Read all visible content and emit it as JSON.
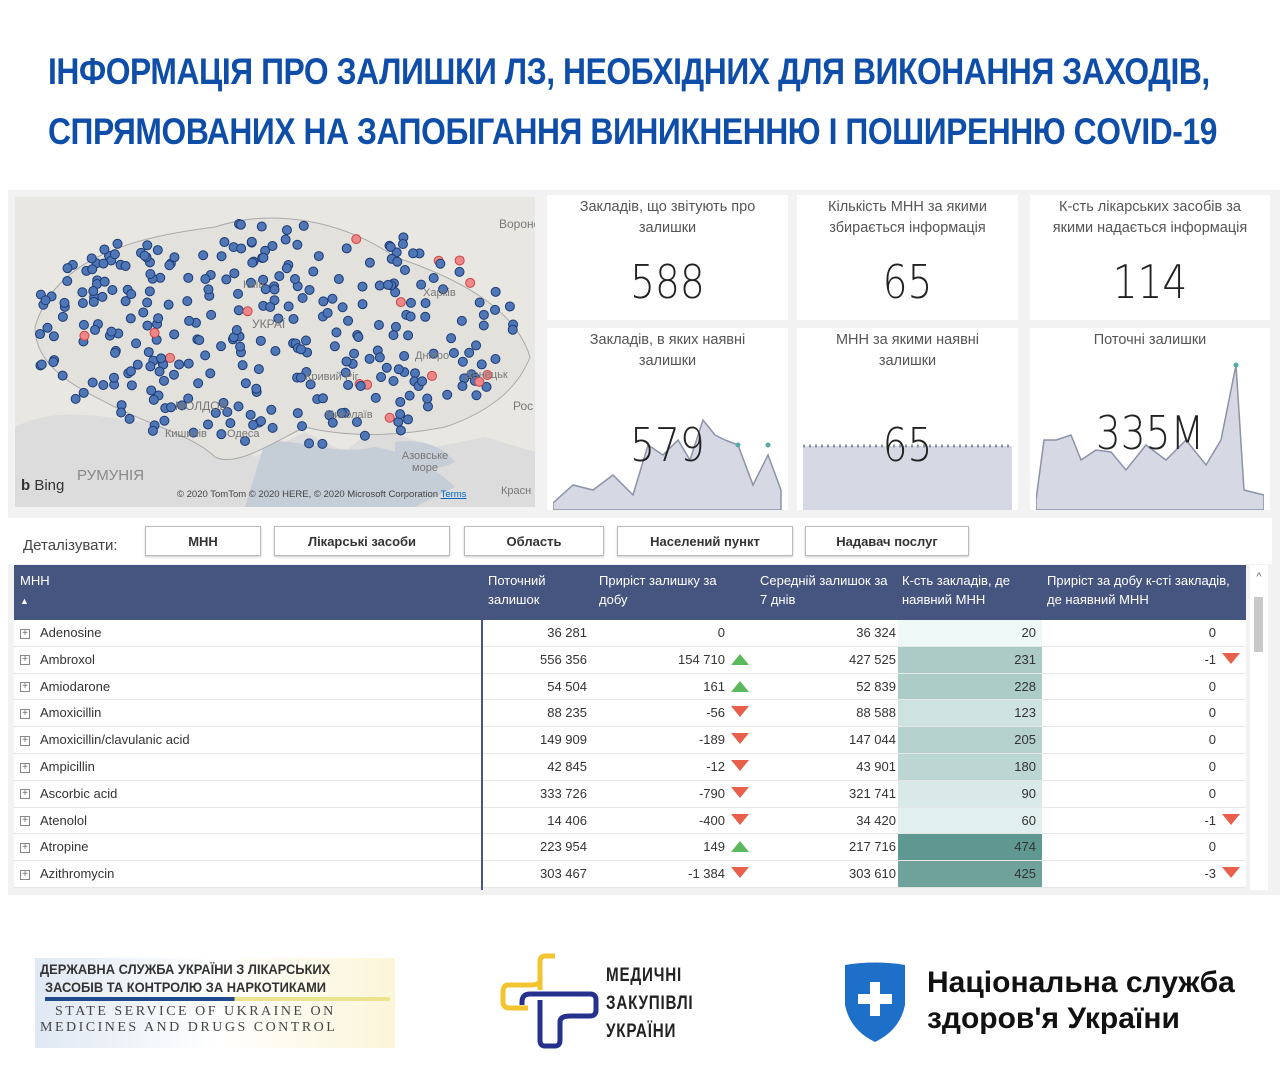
{
  "title": [
    "ІНФОРМАЦІЯ ПРО ЗАЛИШКИ ЛЗ, НЕОБХІДНИХ ДЛЯ ВИКОНАННЯ ЗАХОДІВ,",
    "СПРЯМОВАНИХ НА ЗАПОБІГАННЯ ВИНИКНЕННЮ І ПОШИРЕННЮ COVID-19"
  ],
  "map": {
    "labels": {
      "voronezh": "Вороне",
      "kharkiv": "Харків",
      "kyiv": "Київ",
      "ukraine": "УКРАЇ",
      "dnipro": "Дніпро",
      "donetsk": "Донецьк",
      "russia": "Рос",
      "moldova": "МОЛДОВ",
      "chisinau": "Кишинів",
      "odesa": "Одеса",
      "mykolaiv": "Миколаїв",
      "kryvyi": "Кривий Ріг",
      "azov": "Азовське море",
      "romania": "РУМУНІЯ",
      "krasnodar": "Красн"
    },
    "bing": "Bing",
    "copyright": "© 2020 TomTom © 2020 HERE, © 2020 Microsoft Corporation",
    "terms": "Terms"
  },
  "kpis": [
    {
      "label": "Закладів, що звітують про залишки",
      "value": "588"
    },
    {
      "label": "Кількість МНН за якими збирається інформація",
      "value": "65"
    },
    {
      "label": "К-сть лікарських засобів за якими надається інформація",
      "value": "114"
    },
    {
      "label": "Закладів, в яких наявні залишки",
      "value": "579"
    },
    {
      "label": "МНН за якими наявні залишки",
      "value": "65"
    },
    {
      "label": "Поточні залишки",
      "value": "335M"
    }
  ],
  "drill": {
    "label": "Деталізувати:",
    "buttons": [
      "МНН",
      "Лікарські засоби",
      "Область",
      "Населений пункт",
      "Надавач послуг"
    ]
  },
  "table": {
    "headers": [
      "МНН",
      "Поточний залишок",
      "Приріст залишку за добу",
      "Середній залишок за 7 днів",
      "К-сть закладів, де наявний МНН",
      "Приріст за добу к-сті закладів, де наявний МНН"
    ],
    "heat_color": "#5f9890",
    "rows": [
      {
        "name": "Adenosine",
        "cur": "36 281",
        "inc": "0",
        "incdir": "none",
        "avg": "36 324",
        "cnt": "20",
        "cntv": 20,
        "cinc": "0",
        "cdir": "none"
      },
      {
        "name": "Ambroxol",
        "cur": "556 356",
        "inc": "154 710",
        "incdir": "up",
        "avg": "427 525",
        "cnt": "231",
        "cntv": 231,
        "cinc": "-1",
        "cdir": "down"
      },
      {
        "name": "Amiodarone",
        "cur": "54 504",
        "inc": "161",
        "incdir": "up",
        "avg": "52 839",
        "cnt": "228",
        "cntv": 228,
        "cinc": "0",
        "cdir": "none"
      },
      {
        "name": "Amoxicillin",
        "cur": "88 235",
        "inc": "-56",
        "incdir": "down",
        "avg": "88 588",
        "cnt": "123",
        "cntv": 123,
        "cinc": "0",
        "cdir": "none"
      },
      {
        "name": "Amoxicillin/clavulanic acid",
        "cur": "149 909",
        "inc": "-189",
        "incdir": "down",
        "avg": "147 044",
        "cnt": "205",
        "cntv": 205,
        "cinc": "0",
        "cdir": "none"
      },
      {
        "name": "Ampicillin",
        "cur": "42 845",
        "inc": "-12",
        "incdir": "down",
        "avg": "43 901",
        "cnt": "180",
        "cntv": 180,
        "cinc": "0",
        "cdir": "none"
      },
      {
        "name": "Ascorbic acid",
        "cur": "333 726",
        "inc": "-790",
        "incdir": "down",
        "avg": "321 741",
        "cnt": "90",
        "cntv": 90,
        "cinc": "0",
        "cdir": "none"
      },
      {
        "name": "Atenolol",
        "cur": "14 406",
        "inc": "-400",
        "incdir": "down",
        "avg": "34 420",
        "cnt": "60",
        "cntv": 60,
        "cinc": "-1",
        "cdir": "down"
      },
      {
        "name": "Atropine",
        "cur": "223 954",
        "inc": "149",
        "incdir": "up",
        "avg": "217 716",
        "cnt": "474",
        "cntv": 474,
        "cinc": "0",
        "cdir": "none"
      },
      {
        "name": "Azithromycin",
        "cur": "303 467",
        "inc": "-1 384",
        "incdir": "down",
        "avg": "303 610",
        "cnt": "425",
        "cntv": 425,
        "cinc": "-3",
        "cdir": "down"
      }
    ]
  },
  "footer": {
    "sls": [
      "ДЕРЖАВНА СЛУЖБА УКРАЇНИ З ЛІКАРСЬКИХ",
      "ЗАСОБІВ ТА КОНТРОЛЮ ЗА НАРКОТИКАМИ",
      "STATE SERVICE OF UKRAINE ON",
      "MEDICINES AND DRUGS CONTROL"
    ],
    "mzu": [
      "МЕДИЧНІ",
      "ЗАКУПІВЛІ",
      "УКРАЇНИ"
    ],
    "nszu": [
      "Національна служба",
      "здоров'я України"
    ]
  }
}
